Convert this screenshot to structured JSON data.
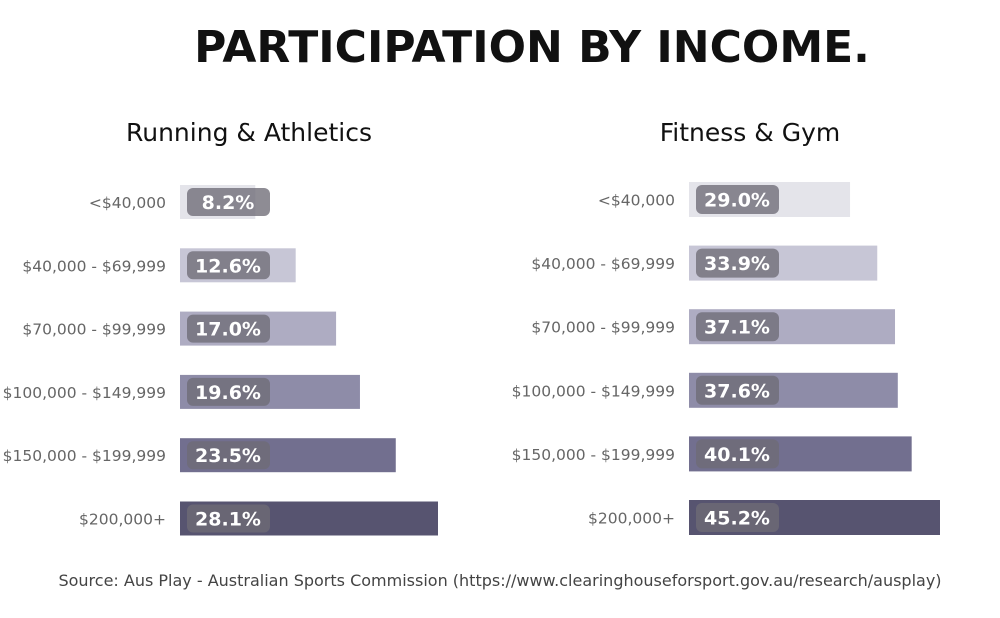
{
  "title": "PARTICIPATION BY INCOME.",
  "source": "Source: Aus Play - Australian Sports Commission (https://www.clearinghouseforsport.gov.au/research/ausplay)",
  "chart_data": [
    {
      "type": "bar",
      "orientation": "horizontal",
      "title": "Running & Athletics",
      "categories": [
        "<$40,000",
        "$40,000 - $69,999",
        "$70,000 - $99,999",
        "$100,000 - $149,999",
        "$150,000 - $199,999",
        "$200,000+"
      ],
      "values": [
        8.2,
        12.6,
        17.0,
        19.6,
        23.5,
        28.1
      ],
      "labels": [
        "8.2%",
        "12.6%",
        "17.0%",
        "19.6%",
        "23.5%",
        "28.1%"
      ],
      "colors": [
        "#e4e4ea",
        "#c7c6d6",
        "#aeacc2",
        "#8e8ca8",
        "#726f8f",
        "#575470"
      ],
      "xlim": [
        0,
        28.1
      ],
      "grid": false,
      "legend": "none"
    },
    {
      "type": "bar",
      "orientation": "horizontal",
      "title": "Fitness & Gym",
      "categories": [
        "<$40,000",
        "$40,000 - $69,999",
        "$70,000 - $99,999",
        "$100,000 - $149,999",
        "$150,000 - $199,999",
        "$200,000+"
      ],
      "values": [
        29.0,
        33.9,
        37.1,
        37.6,
        40.1,
        45.2
      ],
      "labels": [
        "29.0%",
        "33.9%",
        "37.1%",
        "37.6%",
        "40.1%",
        "45.2%"
      ],
      "colors": [
        "#e4e4ea",
        "#c7c6d6",
        "#aeacc2",
        "#8e8ca8",
        "#726f8f",
        "#575470"
      ],
      "xlim": [
        0,
        45.2
      ],
      "grid": false,
      "legend": "none"
    }
  ]
}
